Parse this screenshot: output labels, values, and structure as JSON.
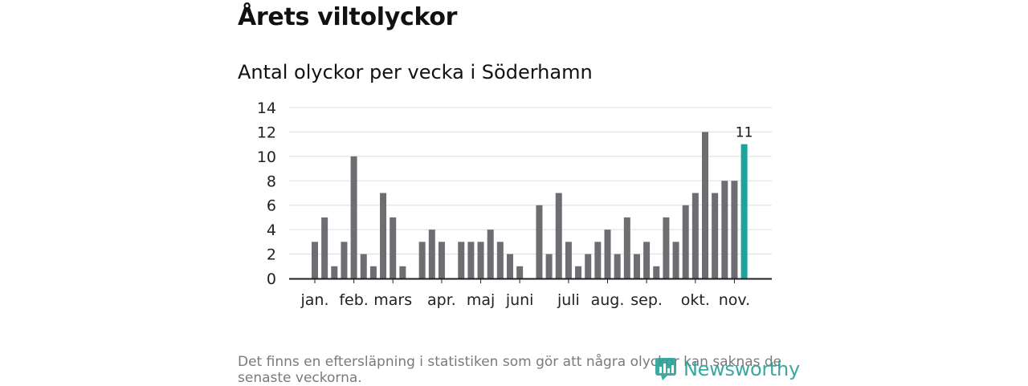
{
  "title": "Årets viltolyckor",
  "subtitle": "Antal olyckor per vecka i Söderhamn",
  "footnote": "Det finns en eftersläpning i statistiken som gör att några olyckor kan saknas de senaste veckorna.",
  "brand": "Newsworthy",
  "colors": {
    "bar": "#6e6d72",
    "highlight": "#1ba39c",
    "grid": "#dddddd",
    "axis": "#222222",
    "brand": "#2aa198"
  },
  "chart_data": {
    "type": "bar",
    "title": "Antal olyckor per vecka i Söderhamn",
    "xlabel": "",
    "ylabel": "",
    "ylim": [
      0,
      14
    ],
    "yticks": [
      0,
      2,
      4,
      6,
      8,
      10,
      12,
      14
    ],
    "weeks": [
      1,
      2,
      3,
      4,
      5,
      6,
      7,
      8,
      9,
      10,
      11,
      12,
      13,
      14,
      15,
      16,
      17,
      18,
      19,
      20,
      21,
      22,
      23,
      24,
      25,
      26,
      27,
      28,
      29,
      30,
      31,
      32,
      33,
      34,
      35,
      36,
      37,
      38,
      39,
      40,
      41,
      42,
      43,
      44,
      45,
      46
    ],
    "values": [
      3,
      5,
      1,
      3,
      10,
      2,
      1,
      7,
      5,
      1,
      0,
      3,
      4,
      3,
      0,
      3,
      3,
      3,
      4,
      3,
      2,
      1,
      0,
      6,
      2,
      7,
      3,
      1,
      2,
      3,
      4,
      2,
      5,
      2,
      3,
      1,
      5,
      3,
      6,
      7,
      12,
      7,
      8,
      8,
      11,
      0
    ],
    "highlight_index": 44,
    "highlight_label": "11",
    "month_labels": [
      {
        "label": "jan.",
        "week": 1
      },
      {
        "label": "feb.",
        "week": 5
      },
      {
        "label": "mars",
        "week": 9
      },
      {
        "label": "apr.",
        "week": 14
      },
      {
        "label": "maj",
        "week": 18
      },
      {
        "label": "juni",
        "week": 22
      },
      {
        "label": "juli",
        "week": 27
      },
      {
        "label": "aug.",
        "week": 31
      },
      {
        "label": "sep.",
        "week": 35
      },
      {
        "label": "okt.",
        "week": 40
      },
      {
        "label": "nov.",
        "week": 44
      }
    ]
  }
}
